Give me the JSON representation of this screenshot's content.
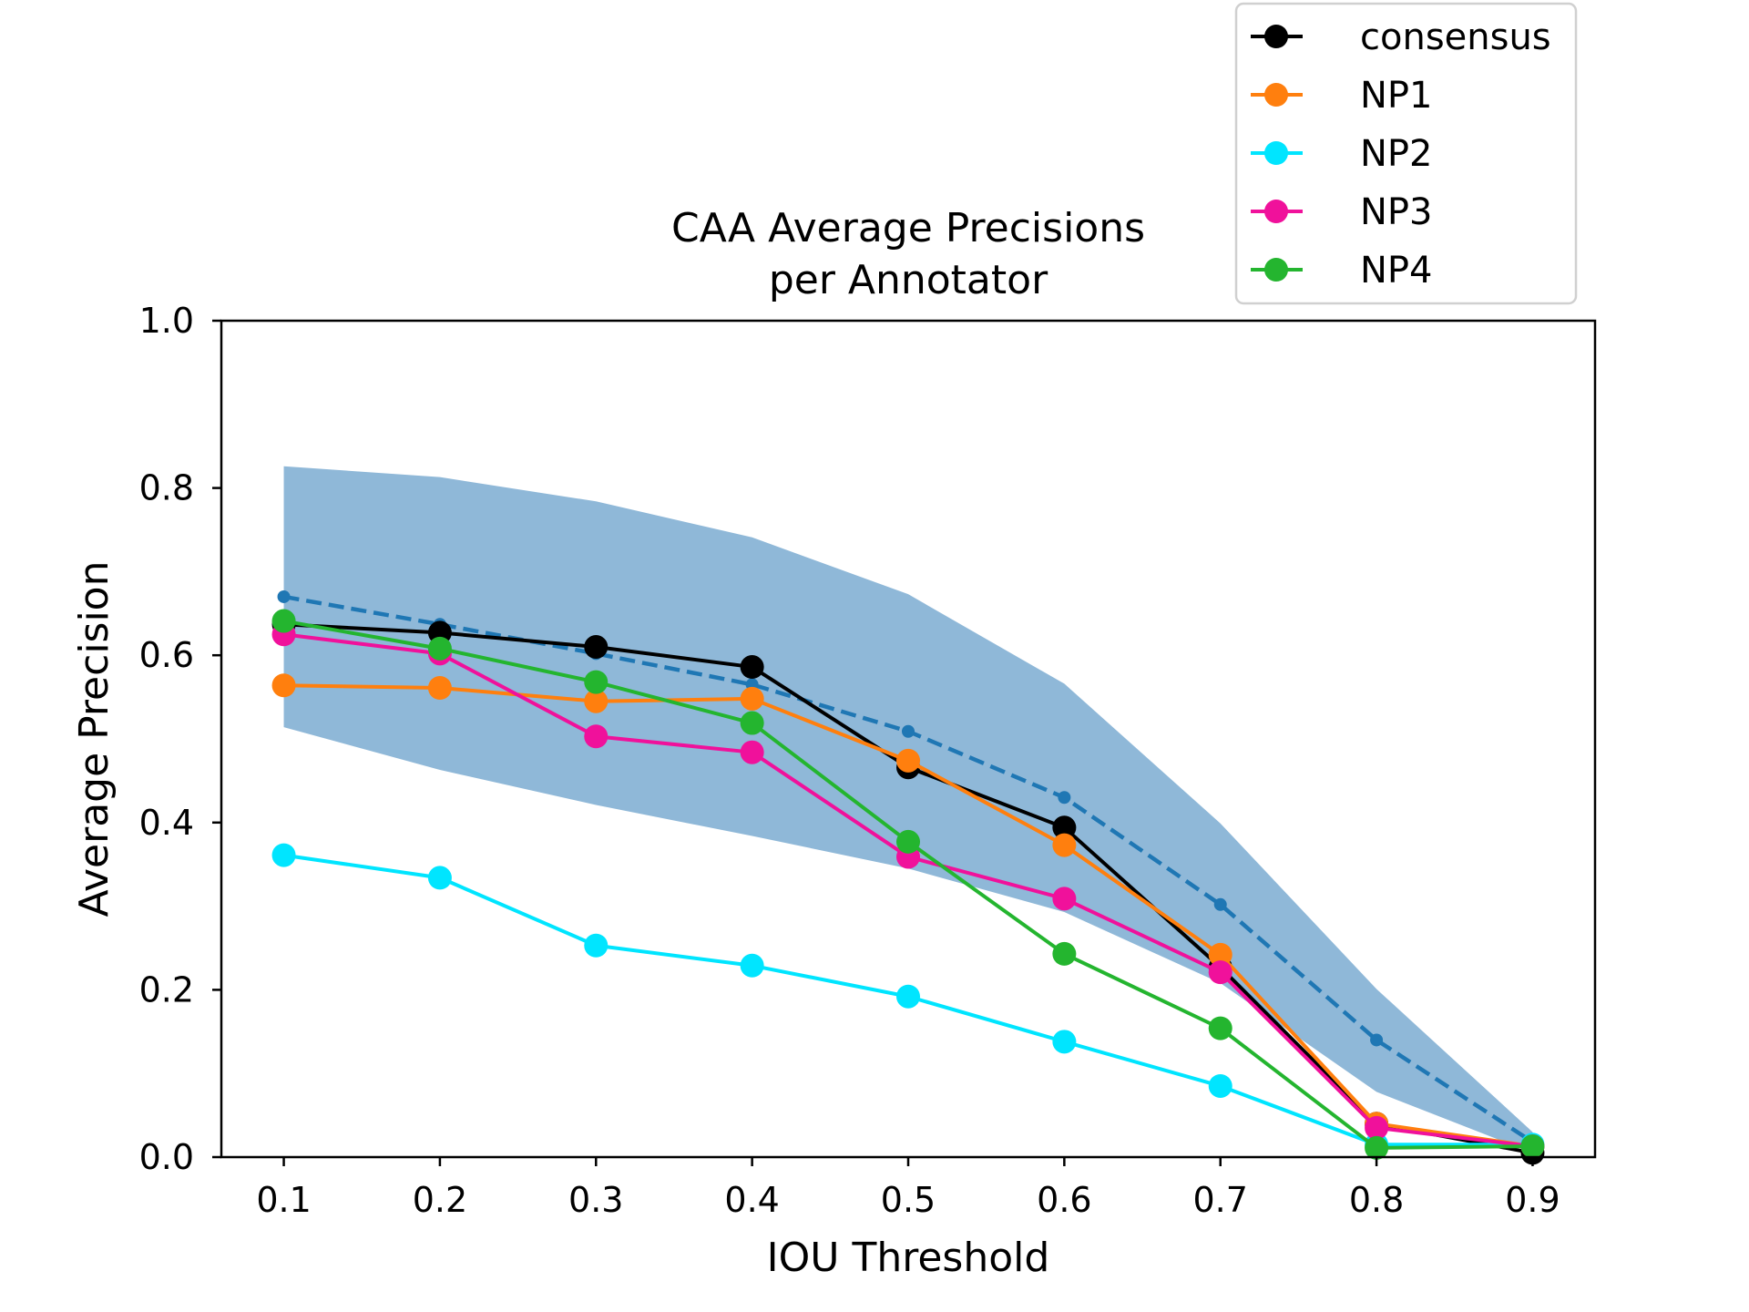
{
  "chart_data": {
    "type": "line",
    "title": [
      "CAA Average Precisions",
      "per Annotator"
    ],
    "xlabel": "IOU Threshold",
    "ylabel": "Average Precision",
    "x": [
      0.1,
      0.2,
      0.3,
      0.4,
      0.5,
      0.6,
      0.7,
      0.8,
      0.9
    ],
    "x_tick_labels": [
      "0.1",
      "0.2",
      "0.3",
      "0.4",
      "0.5",
      "0.6",
      "0.7",
      "0.8",
      "0.9"
    ],
    "y_tick_labels": [
      "0.0",
      "0.2",
      "0.4",
      "0.6",
      "0.8",
      "1.0"
    ],
    "y_ticks": [
      0.0,
      0.2,
      0.4,
      0.6,
      0.8,
      1.0
    ],
    "xlim": [
      0.06,
      0.94
    ],
    "ylim": [
      0.0,
      1.0
    ],
    "grid": false,
    "legend_position": "top-right, above plot",
    "band": {
      "color": "#8fb8d8",
      "upper": [
        0.826,
        0.813,
        0.784,
        0.741,
        0.673,
        0.566,
        0.399,
        0.201,
        0.03
      ],
      "lower": [
        0.514,
        0.463,
        0.421,
        0.384,
        0.345,
        0.293,
        0.208,
        0.078,
        0.005
      ]
    },
    "mean_line": {
      "color": "#1f77b4",
      "style": "dashed",
      "values": [
        0.67,
        0.637,
        0.602,
        0.565,
        0.509,
        0.43,
        0.302,
        0.14,
        0.018
      ]
    },
    "series": [
      {
        "name": "consensus",
        "color": "#000000",
        "values": [
          0.637,
          0.627,
          0.61,
          0.586,
          0.466,
          0.394,
          0.227,
          0.04,
          0.005
        ]
      },
      {
        "name": "NP1",
        "color": "#ff7f0e",
        "values": [
          0.564,
          0.561,
          0.545,
          0.548,
          0.474,
          0.373,
          0.242,
          0.04,
          0.013
        ]
      },
      {
        "name": "NP2",
        "color": "#00e5ff",
        "values": [
          0.361,
          0.334,
          0.253,
          0.229,
          0.192,
          0.138,
          0.085,
          0.015,
          0.015
        ]
      },
      {
        "name": "NP3",
        "color": "#f0119b",
        "values": [
          0.625,
          0.602,
          0.503,
          0.484,
          0.359,
          0.309,
          0.221,
          0.035,
          0.013
        ]
      },
      {
        "name": "NP4",
        "color": "#24b52f",
        "values": [
          0.641,
          0.608,
          0.568,
          0.519,
          0.377,
          0.243,
          0.154,
          0.011,
          0.013
        ]
      }
    ]
  }
}
